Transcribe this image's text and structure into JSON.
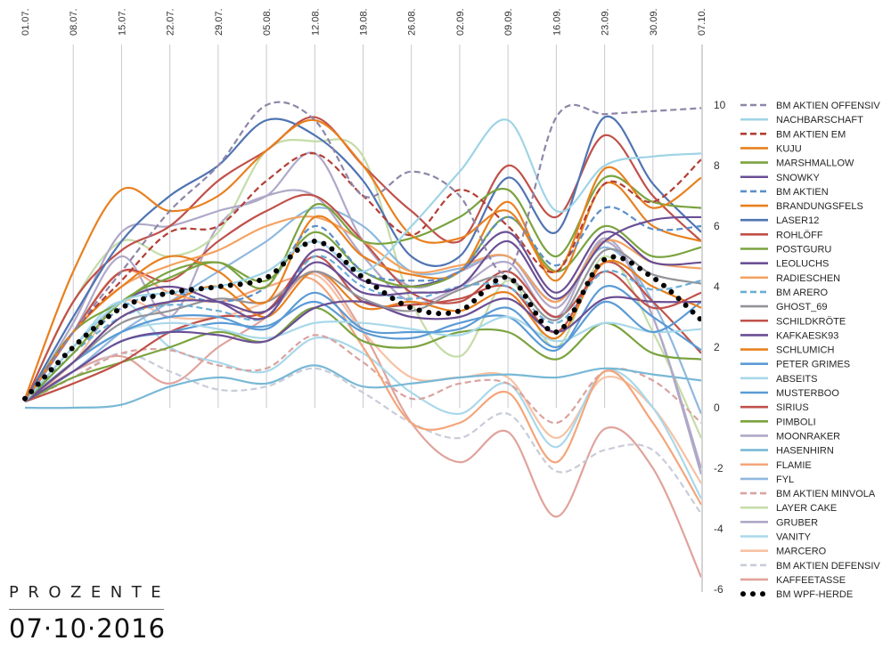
{
  "chart_data": {
    "type": "line",
    "title": "",
    "xlabel": "",
    "ylabel": "Prozente",
    "x": [
      "01.07.",
      "08.07.",
      "15.07.",
      "22.07.",
      "29.07.",
      "05.08.",
      "12.08.",
      "19.08.",
      "26.08.",
      "02.09.",
      "09.09.",
      "16.09.",
      "23.09.",
      "30.09.",
      "07.10."
    ],
    "ylim": [
      -6,
      10
    ],
    "yticks": [
      10,
      8,
      6,
      4,
      2,
      0,
      -2,
      -4,
      -6
    ],
    "grid": "vertical",
    "smooth": true,
    "legend_position": "right",
    "series": [
      {
        "name": "BM AKTIEN OFFENSIV",
        "color": "#8e86a8",
        "style": "dashed",
        "values": [
          0.2,
          2.5,
          4.5,
          6.5,
          8.0,
          10.0,
          9.5,
          7.0,
          7.8,
          7.0,
          4.5,
          9.6,
          9.7,
          9.8,
          9.9
        ]
      },
      {
        "name": "NACHBARSCHAFT",
        "color": "#9fd4e6",
        "style": "solid",
        "values": [
          0.2,
          2.0,
          3.5,
          3.8,
          4.0,
          4.5,
          5.5,
          4.5,
          6.0,
          7.8,
          9.5,
          6.5,
          8.0,
          8.3,
          8.4
        ]
      },
      {
        "name": "BM AKTIEN EM",
        "color": "#b33f35",
        "style": "dashed",
        "values": [
          0.2,
          2.5,
          4.2,
          5.8,
          6.0,
          7.5,
          8.4,
          7.0,
          5.7,
          7.2,
          6.0,
          4.5,
          7.4,
          6.8,
          8.2
        ]
      },
      {
        "name": "KUJU",
        "color": "#e8801f",
        "style": "solid",
        "values": [
          0.3,
          4.5,
          7.2,
          6.5,
          7.0,
          8.5,
          9.5,
          8.0,
          5.7,
          5.6,
          6.5,
          4.5,
          7.9,
          6.6,
          7.6
        ]
      },
      {
        "name": "MARSHMALLOW",
        "color": "#7aa33f",
        "style": "solid",
        "values": [
          0.2,
          1.8,
          3.5,
          4.3,
          4.8,
          4.0,
          6.7,
          5.5,
          5.6,
          6.3,
          7.2,
          5.0,
          7.6,
          6.8,
          6.6
        ]
      },
      {
        "name": "SNOWKY",
        "color": "#6a4f94",
        "style": "solid",
        "values": [
          0.2,
          1.5,
          3.0,
          3.5,
          3.5,
          3.2,
          4.8,
          3.8,
          3.8,
          4.0,
          5.5,
          3.6,
          5.5,
          6.2,
          6.3
        ]
      },
      {
        "name": "BM AKTIEN",
        "color": "#5b8fc9",
        "style": "dashed",
        "values": [
          0.2,
          1.8,
          3.3,
          3.8,
          3.5,
          4.0,
          6.0,
          4.5,
          4.2,
          4.5,
          6.3,
          4.7,
          6.6,
          5.9,
          6.0
        ]
      },
      {
        "name": "BRANDUNGSFELS",
        "color": "#e8801f",
        "style": "solid",
        "values": [
          0.2,
          2.5,
          4.0,
          5.0,
          4.5,
          3.5,
          6.3,
          5.0,
          4.4,
          4.5,
          6.8,
          4.2,
          7.4,
          6.0,
          5.5
        ]
      },
      {
        "name": "LASER12",
        "color": "#4f74b3",
        "style": "solid",
        "values": [
          0.2,
          3.0,
          5.5,
          7.0,
          8.0,
          9.5,
          9.0,
          7.5,
          5.0,
          5.0,
          7.6,
          5.8,
          9.6,
          7.4,
          5.8
        ]
      },
      {
        "name": "ROHLÖFF",
        "color": "#c0514a",
        "style": "solid",
        "values": [
          0.2,
          3.5,
          5.2,
          6.0,
          7.5,
          8.5,
          9.6,
          8.0,
          6.5,
          5.5,
          8.0,
          6.3,
          9.0,
          7.0,
          5.5
        ]
      },
      {
        "name": "POSTGURU",
        "color": "#7aa33f",
        "style": "solid",
        "values": [
          0.2,
          2.5,
          3.5,
          4.5,
          4.8,
          4.2,
          5.8,
          4.5,
          4.0,
          4.5,
          6.3,
          4.5,
          6.0,
          5.0,
          5.3
        ]
      },
      {
        "name": "LEOLUCHS",
        "color": "#6a4f94",
        "style": "solid",
        "values": [
          0.2,
          2.0,
          3.5,
          4.0,
          3.5,
          3.0,
          5.2,
          4.2,
          4.0,
          4.5,
          5.8,
          3.8,
          5.8,
          4.8,
          4.8
        ]
      },
      {
        "name": "RADIESCHEN",
        "color": "#f4a261",
        "style": "solid",
        "values": [
          0.2,
          2.5,
          4.0,
          4.7,
          5.2,
          6.0,
          6.3,
          5.5,
          4.5,
          4.7,
          5.0,
          3.5,
          5.5,
          4.8,
          4.6
        ]
      },
      {
        "name": "BM ARERO",
        "color": "#6baed6",
        "style": "dashed",
        "values": [
          0.2,
          1.8,
          3.0,
          3.4,
          3.2,
          3.0,
          5.0,
          4.0,
          3.6,
          4.0,
          4.0,
          2.8,
          4.5,
          3.9,
          4.2
        ]
      },
      {
        "name": "GHOST_69",
        "color": "#939399",
        "style": "solid",
        "values": [
          0.2,
          1.5,
          2.8,
          3.2,
          3.6,
          3.5,
          4.5,
          3.6,
          3.2,
          3.9,
          4.3,
          2.9,
          5.2,
          4.4,
          4.1
        ]
      },
      {
        "name": "SCHILDKRÖTE",
        "color": "#c0514a",
        "style": "solid",
        "values": [
          0.2,
          2.5,
          4.5,
          4.2,
          5.5,
          6.5,
          7.0,
          5.5,
          3.8,
          3.5,
          4.5,
          3.0,
          4.5,
          3.3,
          3.8
        ]
      },
      {
        "name": "KAFKAESK93",
        "color": "#6a4f94",
        "style": "solid",
        "values": [
          0.2,
          1.2,
          2.2,
          2.5,
          2.4,
          2.2,
          3.3,
          3.5,
          3.0,
          3.0,
          3.6,
          2.5,
          3.6,
          3.5,
          3.5
        ]
      },
      {
        "name": "SCHLUMICH",
        "color": "#e8801f",
        "style": "solid",
        "values": [
          0.2,
          1.5,
          3.0,
          3.5,
          4.0,
          3.0,
          4.5,
          3.3,
          3.5,
          3.2,
          3.8,
          2.3,
          4.8,
          4.0,
          3.3
        ]
      },
      {
        "name": "PETER GRIMES",
        "color": "#5b9bd5",
        "style": "solid",
        "values": [
          0.2,
          1.5,
          2.5,
          3.0,
          3.0,
          2.6,
          3.8,
          2.6,
          2.5,
          2.6,
          3.3,
          2.0,
          3.5,
          2.5,
          3.5
        ]
      },
      {
        "name": "ABSEITS",
        "color": "#a9d8ea",
        "style": "solid",
        "values": [
          0.2,
          1.5,
          2.5,
          2.8,
          2.6,
          2.3,
          2.8,
          2.8,
          2.6,
          2.4,
          3.0,
          2.2,
          2.8,
          2.5,
          2.6
        ]
      },
      {
        "name": "MUSTERBOO",
        "color": "#5b9bd5",
        "style": "solid",
        "values": [
          0.2,
          1.2,
          2.2,
          2.5,
          2.8,
          2.7,
          3.5,
          2.5,
          2.3,
          2.8,
          3.0,
          1.9,
          4.0,
          3.0,
          1.9
        ]
      },
      {
        "name": "SIRIUS",
        "color": "#c0514a",
        "style": "solid",
        "values": [
          0.2,
          0.8,
          1.5,
          2.5,
          3.0,
          3.2,
          5.0,
          3.5,
          3.4,
          3.6,
          4.0,
          2.5,
          4.8,
          3.5,
          1.8
        ]
      },
      {
        "name": "PIMBOLI",
        "color": "#7aa33f",
        "style": "solid",
        "values": [
          0.2,
          1.0,
          1.5,
          2.0,
          2.5,
          2.2,
          3.3,
          2.2,
          2.0,
          2.5,
          2.5,
          1.6,
          2.8,
          1.8,
          1.6
        ]
      },
      {
        "name": "MOONRAKER",
        "color": "#b0a8c8",
        "style": "solid",
        "values": [
          0.2,
          2.8,
          5.8,
          6.0,
          6.5,
          7.0,
          8.4,
          5.5,
          4.0,
          4.5,
          5.0,
          3.3,
          5.5,
          3.0,
          -2.0
        ]
      },
      {
        "name": "HASENHIRN",
        "color": "#79b8d6",
        "style": "solid",
        "values": [
          0.0,
          0.0,
          0.1,
          0.7,
          1.0,
          0.8,
          1.4,
          0.7,
          0.8,
          1.0,
          1.1,
          1.0,
          1.3,
          1.1,
          0.9
        ]
      },
      {
        "name": "FLAMIE",
        "color": "#f4a57a",
        "style": "solid",
        "values": [
          0.2,
          2.5,
          4.5,
          3.8,
          3.5,
          4.0,
          4.2,
          2.0,
          -0.5,
          -0.5,
          0.5,
          -1.8,
          1.2,
          -0.5,
          -3.2
        ]
      },
      {
        "name": "FYL",
        "color": "#8fb8de",
        "style": "solid",
        "values": [
          0.2,
          1.2,
          2.5,
          3.5,
          4.5,
          5.5,
          6.6,
          6.0,
          4.5,
          4.6,
          5.0,
          3.5,
          5.3,
          3.5,
          -0.2
        ]
      },
      {
        "name": "BM AKTIEN MINVOLA",
        "color": "#d9a3a0",
        "style": "dashed",
        "values": [
          0.2,
          1.0,
          1.8,
          1.9,
          1.4,
          1.3,
          2.4,
          1.5,
          0.3,
          0.8,
          0.8,
          -0.5,
          1.2,
          0.9,
          -0.5
        ]
      },
      {
        "name": "LAYER CAKE",
        "color": "#c5dca8",
        "style": "solid",
        "values": [
          0.2,
          3.5,
          5.5,
          5.0,
          5.8,
          8.5,
          8.8,
          8.3,
          3.5,
          1.7,
          4.2,
          2.0,
          5.0,
          2.5,
          -1.0
        ]
      },
      {
        "name": "GRUBER",
        "color": "#b0a8c8",
        "style": "solid",
        "values": [
          0.2,
          2.5,
          5.0,
          3.0,
          6.0,
          7.0,
          7.0,
          5.0,
          3.5,
          4.0,
          4.8,
          3.0,
          5.6,
          3.0,
          -2.2
        ]
      },
      {
        "name": "VANITY",
        "color": "#a9d8ea",
        "style": "solid",
        "values": [
          0.2,
          2.0,
          3.5,
          2.0,
          1.5,
          1.2,
          2.3,
          1.8,
          0.5,
          -0.2,
          0.8,
          -1.3,
          1.2,
          0.0,
          -3.0
        ]
      },
      {
        "name": "MARCERO",
        "color": "#f7c1a2",
        "style": "solid",
        "values": [
          0.2,
          1.5,
          3.5,
          3.0,
          3.0,
          3.5,
          4.4,
          2.5,
          1.0,
          1.0,
          1.0,
          -1.0,
          1.0,
          0.0,
          -2.5
        ]
      },
      {
        "name": "BM AKTIEN DEFENSIV",
        "color": "#c9ccd9",
        "style": "dashed",
        "values": [
          0.2,
          1.0,
          1.8,
          1.2,
          0.6,
          0.7,
          1.3,
          0.5,
          -0.5,
          -1.0,
          -0.2,
          -2.1,
          -1.4,
          -1.4,
          -3.5
        ]
      },
      {
        "name": "KAFFEETASSE",
        "color": "#e0a39c",
        "style": "solid",
        "values": [
          0.2,
          1.2,
          1.7,
          0.8,
          2.0,
          3.0,
          4.5,
          2.5,
          -0.5,
          -1.8,
          -0.8,
          -3.6,
          -0.7,
          -2.0,
          -5.6
        ]
      },
      {
        "name": "BM WPF-HERDE",
        "color": "#000000",
        "style": "dotted",
        "values": [
          0.3,
          2.0,
          3.3,
          3.8,
          4.0,
          4.3,
          5.5,
          4.3,
          3.3,
          3.2,
          4.3,
          2.5,
          4.9,
          4.3,
          2.9
        ]
      }
    ]
  },
  "footer": {
    "title": "PROZENTE",
    "date": "07·10·2016"
  }
}
